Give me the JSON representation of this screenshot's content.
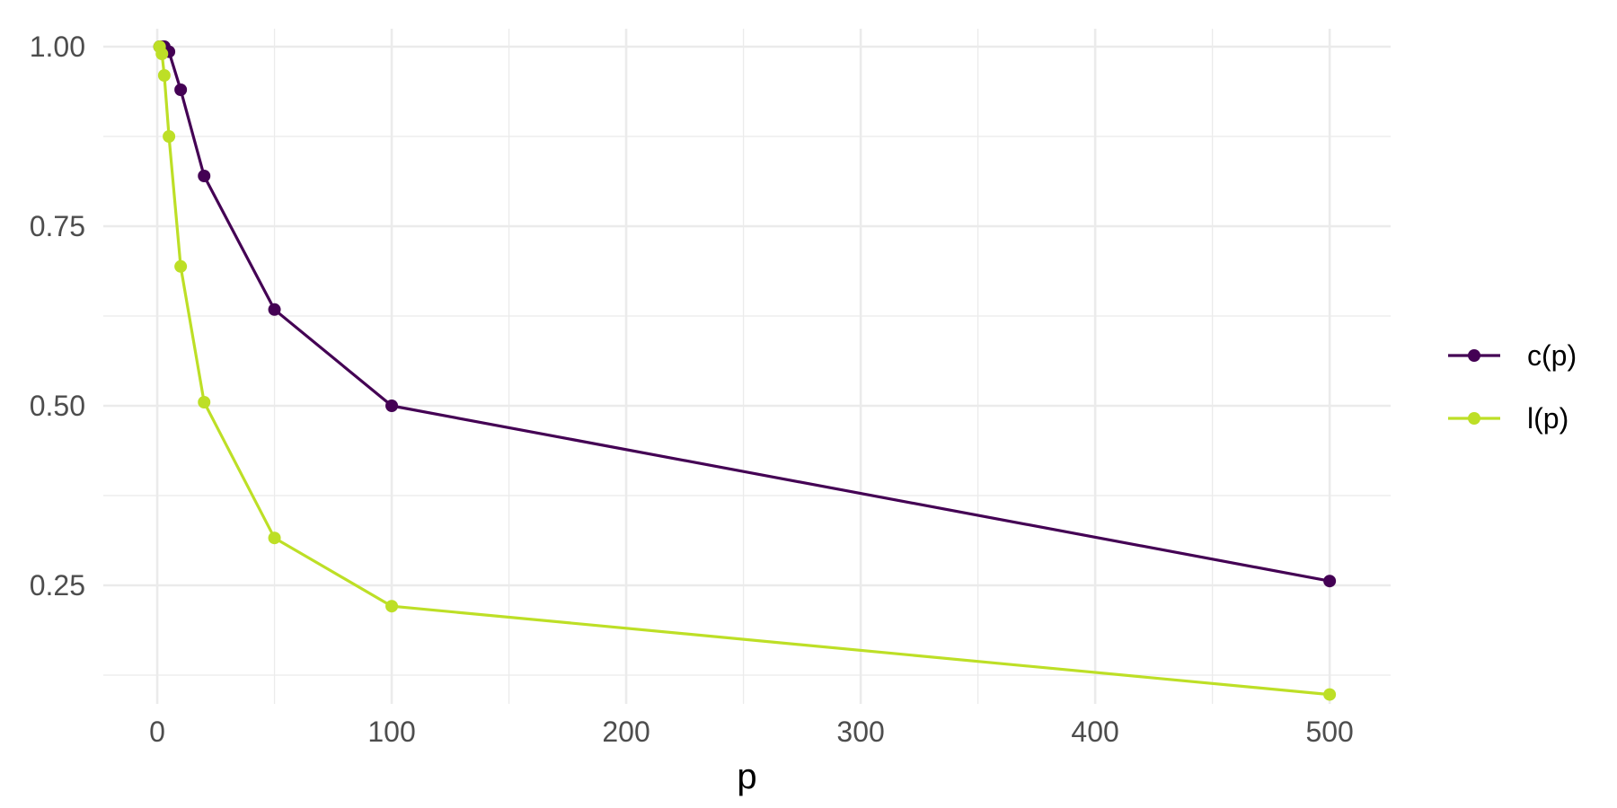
{
  "chart_data": {
    "type": "line",
    "title": "",
    "xlabel": "p",
    "ylabel": "",
    "xlim": [
      -23,
      526
    ],
    "ylim": [
      0.085,
      1.025
    ],
    "x_major_ticks": [
      0,
      100,
      200,
      300,
      400,
      500
    ],
    "x_tick_labels": [
      "0",
      "100",
      "200",
      "300",
      "400",
      "500"
    ],
    "x_minor_ticks": [
      50,
      150,
      250,
      350,
      450
    ],
    "y_major_ticks": [
      0.25,
      0.5,
      0.75,
      1.0
    ],
    "y_tick_labels": [
      "0.25",
      "0.50",
      "0.75",
      "1.00"
    ],
    "y_minor_ticks": [
      0.125,
      0.375,
      0.625,
      0.875
    ],
    "grid": true,
    "legend_position": "right",
    "series": [
      {
        "name": "c(p)",
        "color": "#440154",
        "x": [
          1,
          2,
          3,
          5,
          10,
          20,
          50,
          100,
          500
        ],
        "y": [
          1.0,
          1.0,
          1.0,
          0.993,
          0.94,
          0.82,
          0.634,
          0.5,
          0.256
        ]
      },
      {
        "name": "l(p)",
        "color": "#bddf26",
        "x": [
          1,
          2,
          3,
          5,
          10,
          20,
          50,
          100,
          500
        ],
        "y": [
          1.0,
          0.99,
          0.96,
          0.875,
          0.694,
          0.505,
          0.316,
          0.221,
          0.098
        ]
      }
    ]
  }
}
